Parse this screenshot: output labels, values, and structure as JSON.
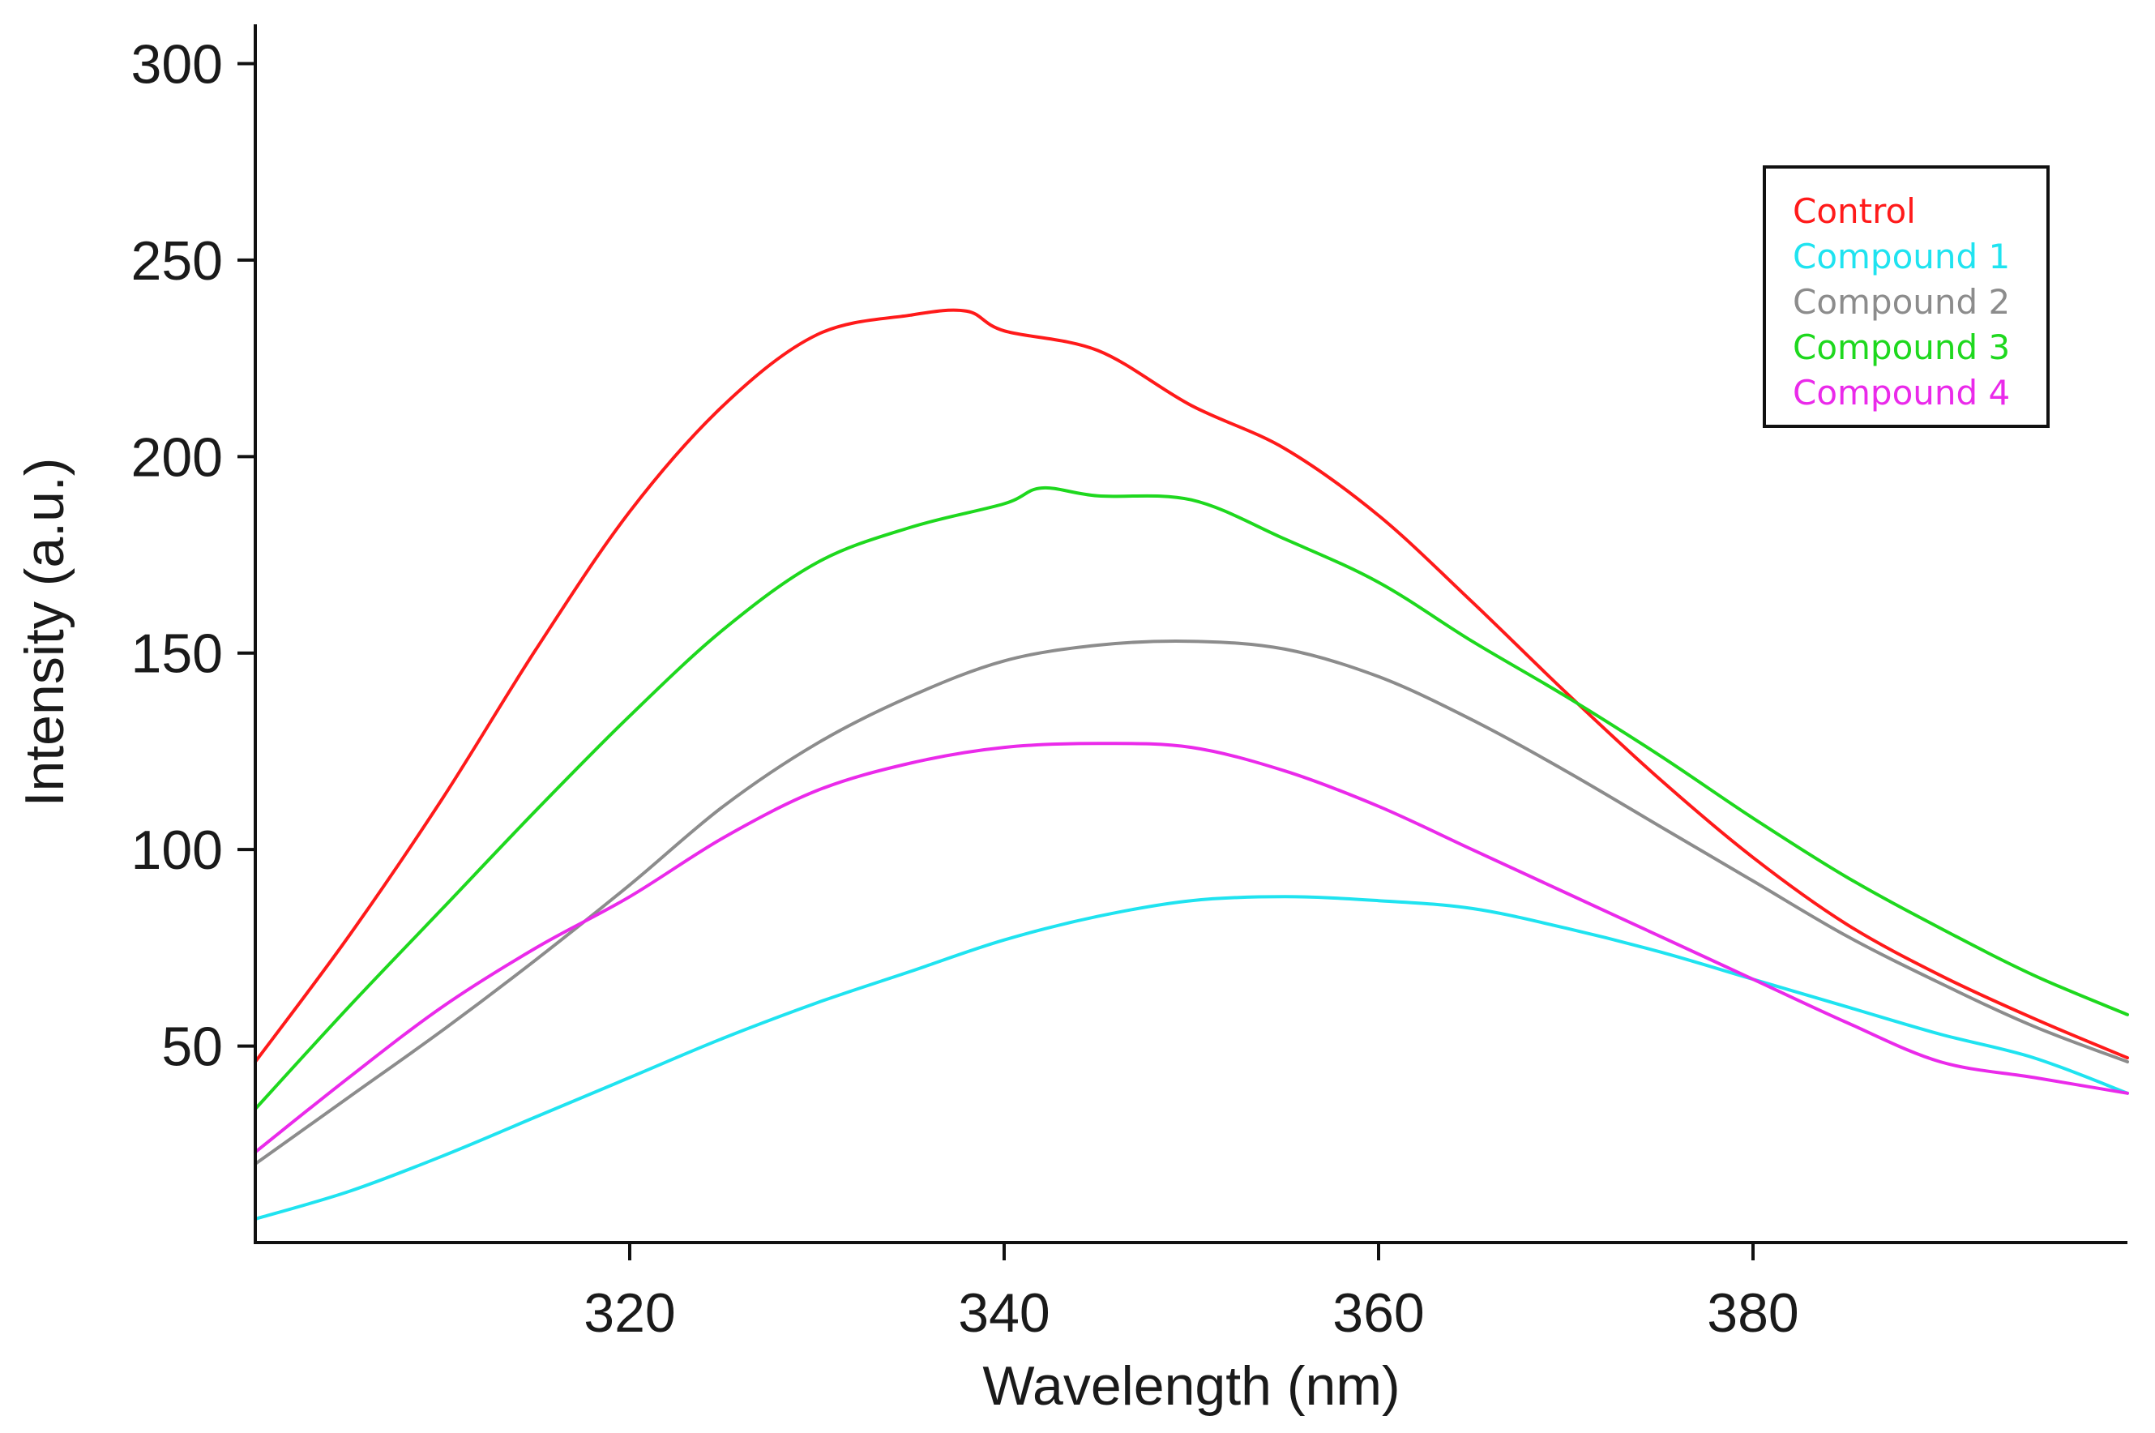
{
  "chart_data": {
    "type": "line",
    "title": "",
    "xlabel": "Wavelength (nm)",
    "ylabel": "Intensity (a.u.)",
    "xlim": [
      300,
      400
    ],
    "ylim": [
      0,
      310
    ],
    "xticks": [
      320,
      340,
      360,
      380
    ],
    "yticks": [
      50,
      100,
      150,
      200,
      250,
      300
    ],
    "grid": false,
    "legend_position": "top-right",
    "series": [
      {
        "name": "Control",
        "color": "#ff1a1a",
        "x": [
          300,
          305,
          310,
          315,
          320,
          325,
          330,
          335,
          338,
          340,
          345,
          350,
          355,
          360,
          365,
          370,
          375,
          380,
          385,
          390,
          395,
          400
        ],
        "y": [
          46,
          78,
          113,
          151,
          186,
          213,
          231,
          236,
          237,
          232,
          227,
          213,
          202,
          185,
          163,
          140,
          118,
          98,
          81,
          68,
          57,
          47
        ]
      },
      {
        "name": "Compound 1",
        "color": "#1fe3f0",
        "x": [
          300,
          305,
          310,
          315,
          320,
          325,
          330,
          335,
          340,
          345,
          350,
          355,
          360,
          365,
          370,
          375,
          380,
          385,
          390,
          395,
          400
        ],
        "y": [
          6,
          13,
          22,
          32,
          42,
          52,
          61,
          69,
          77,
          83,
          87,
          88,
          87,
          85,
          80,
          74,
          67,
          60,
          53,
          47,
          38
        ]
      },
      {
        "name": "Compound 2",
        "color": "#8c8c8c",
        "x": [
          300,
          305,
          310,
          315,
          320,
          325,
          330,
          335,
          340,
          345,
          350,
          355,
          360,
          365,
          370,
          375,
          380,
          385,
          390,
          395,
          400
        ],
        "y": [
          20,
          37,
          54,
          72,
          91,
          111,
          127,
          139,
          148,
          152,
          153,
          151,
          144,
          133,
          120,
          106,
          92,
          78,
          66,
          55,
          46
        ]
      },
      {
        "name": "Compound 3",
        "color": "#1ed81e",
        "x": [
          300,
          305,
          310,
          315,
          320,
          325,
          330,
          335,
          340,
          342,
          345,
          350,
          355,
          360,
          365,
          370,
          375,
          380,
          385,
          390,
          395,
          400
        ],
        "y": [
          34,
          60,
          85,
          110,
          134,
          156,
          173,
          182,
          188,
          192,
          190,
          189,
          179,
          168,
          153,
          139,
          124,
          108,
          93,
          80,
          68,
          58
        ]
      },
      {
        "name": "Compound 4",
        "color": "#ea2aea",
        "x": [
          300,
          305,
          310,
          315,
          320,
          325,
          330,
          335,
          340,
          345,
          350,
          355,
          360,
          365,
          370,
          375,
          380,
          385,
          390,
          395,
          400
        ],
        "y": [
          23,
          42,
          60,
          75,
          88,
          103,
          115,
          122,
          126,
          127,
          126,
          120,
          111,
          100,
          89,
          78,
          67,
          56,
          46,
          42,
          38
        ]
      }
    ]
  }
}
